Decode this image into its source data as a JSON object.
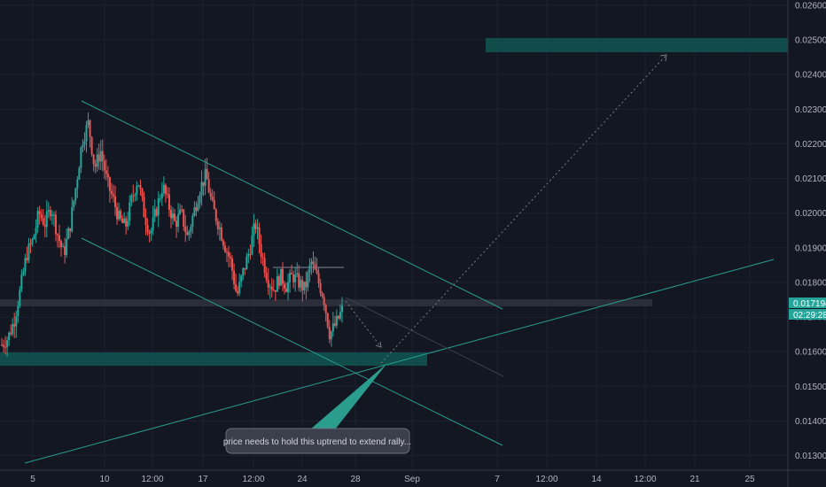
{
  "chart_data": {
    "type": "candlestick",
    "title": "",
    "xlabel": "",
    "ylabel": "",
    "ylim": [
      0.01263,
      0.02605
    ],
    "grid": true,
    "x_ticks": [
      "5",
      "10",
      "12:00",
      "17",
      "12:00",
      "24",
      "28",
      "Sep",
      "7",
      "12:00",
      "14",
      "12:00",
      "21",
      "25"
    ],
    "y_ticks": [
      "0.026000",
      "0.025000",
      "0.024000",
      "0.023000",
      "0.022000",
      "0.021000",
      "0.020000",
      "0.019000",
      "0.018000",
      "0.017000",
      "0.016000",
      "0.015000",
      "0.014000",
      "0.013000"
    ],
    "last_price": "0.017194",
    "countdown": "02:29:28",
    "colors": {
      "up": "#26a69a",
      "down": "#ef5350",
      "teal_line": "#2a9d8f",
      "zone": "#0f4c4a",
      "background": "#131722"
    },
    "price_path": [
      0.0162,
      0.0164,
      0.0169,
      0.0178,
      0.0188,
      0.0192,
      0.02,
      0.0197,
      0.0202,
      0.0194,
      0.0188,
      0.0196,
      0.0208,
      0.0221,
      0.0226,
      0.0213,
      0.0218,
      0.0209,
      0.0204,
      0.0198,
      0.0196,
      0.0204,
      0.021,
      0.02,
      0.0194,
      0.0201,
      0.0208,
      0.0202,
      0.0197,
      0.02,
      0.0193,
      0.02,
      0.0207,
      0.0211,
      0.0202,
      0.0197,
      0.0191,
      0.0186,
      0.0176,
      0.0183,
      0.0189,
      0.0197,
      0.0188,
      0.0181,
      0.0178,
      0.0182,
      0.0179,
      0.0182,
      0.018,
      0.0178,
      0.0186,
      0.0181,
      0.0176,
      0.0165,
      0.0168,
      0.0172
    ],
    "annotations": {
      "note": "price needs to hold this uptrend to extend rally..."
    }
  }
}
